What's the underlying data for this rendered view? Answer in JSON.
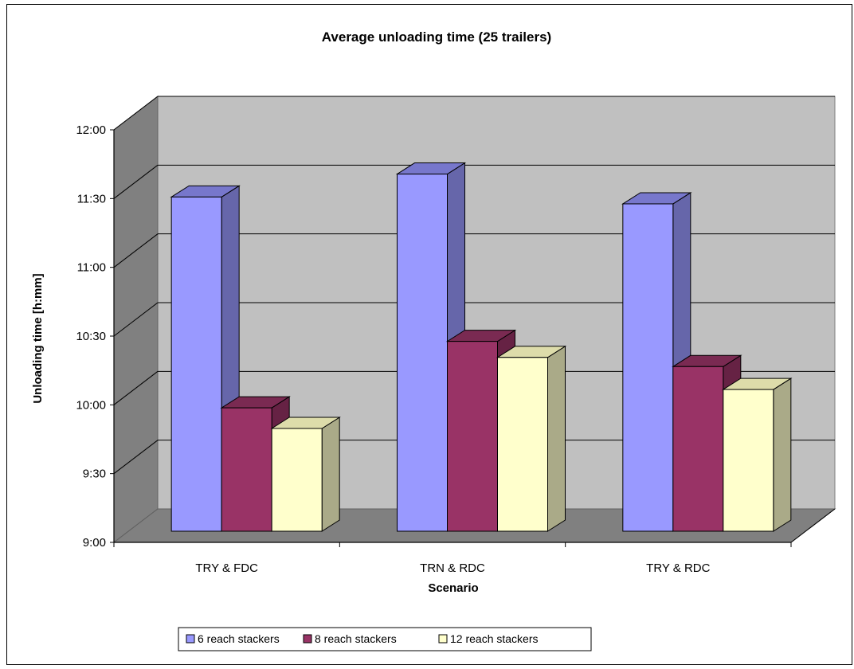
{
  "chart_data": {
    "type": "bar",
    "title": "Average unloading time (25 trailers)",
    "xlabel": "Scenario",
    "ylabel": "Unloading time [h:mm]",
    "categories": [
      "TRY & FDC",
      "TRN & RDC",
      "TRY & RDC"
    ],
    "y_tick_labels": [
      "9:00",
      "9:30",
      "10:00",
      "10:30",
      "11:00",
      "11:30",
      "12:00"
    ],
    "ylim_minutes": [
      540,
      720
    ],
    "series": [
      {
        "name": "6 reach stackers",
        "values_minutes": [
          690,
          700,
          687
        ],
        "values": [
          "11:30",
          "11:40",
          "11:27"
        ],
        "color": "#9999ff",
        "side_color": "#6666aa",
        "top_color": "#7777cc"
      },
      {
        "name": "8 reach stackers",
        "values_minutes": [
          598,
          627,
          616
        ],
        "values": [
          "9:58",
          "10:27",
          "10:16"
        ],
        "color": "#993366",
        "side_color": "#662244",
        "top_color": "#7a2a52"
      },
      {
        "name": "12 reach stackers",
        "values_minutes": [
          589,
          620,
          606
        ],
        "values": [
          "9:49",
          "10:20",
          "10:06"
        ],
        "color": "#ffffcc",
        "side_color": "#aaaa88",
        "top_color": "#dddcaa"
      }
    ],
    "style": "3d-clustered-column",
    "grid": true,
    "legend_position": "bottom"
  }
}
